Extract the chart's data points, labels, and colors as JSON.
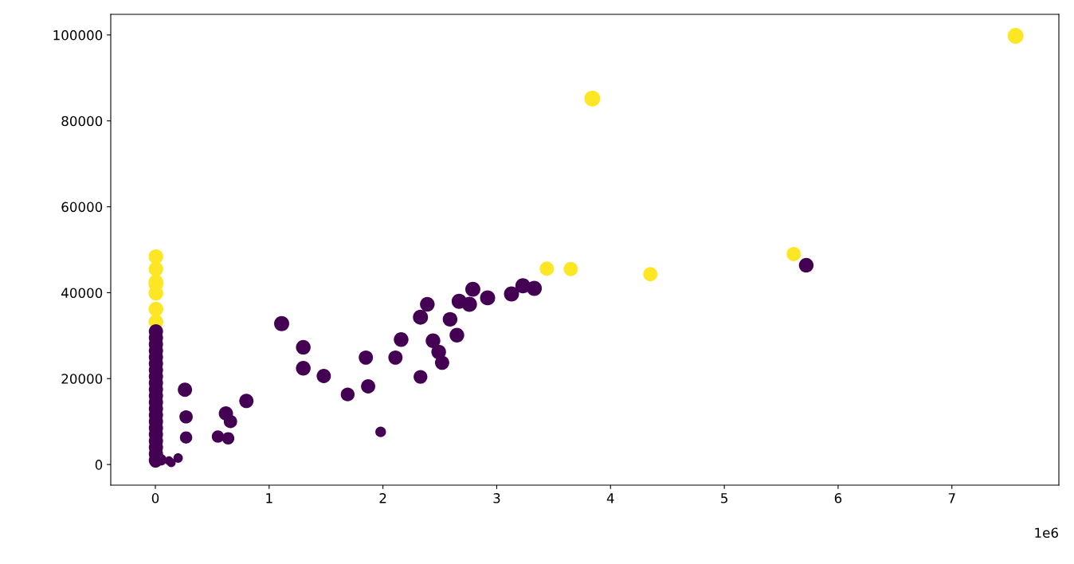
{
  "chart_data": {
    "type": "bubble",
    "x": [
      0.005,
      0.005,
      0.005,
      0.005,
      0.005,
      0.005,
      0.005,
      0.005,
      0.005,
      0.005,
      0.005,
      0.005,
      0.005,
      0.005,
      0.005,
      0.005,
      0.005,
      0.005,
      0.005,
      0.005,
      0.005,
      0.005,
      0.005,
      0.005,
      0.005,
      0.005,
      0.005,
      0.005,
      0,
      0.05,
      0.12,
      0.14,
      0.2,
      0.26,
      0.27,
      0.27,
      0.55,
      0.64,
      0.62,
      0.66,
      0.8,
      1.11,
      1.3,
      1.3,
      1.48,
      1.69,
      1.85,
      1.87,
      1.98,
      2.11,
      2.16,
      2.33,
      2.33,
      2.39,
      2.44,
      2.49,
      2.52,
      2.59,
      2.65,
      2.67,
      2.76,
      2.79,
      2.92,
      3.13,
      3.23,
      3.33,
      5.72,
      3.44,
      3.65,
      3.84,
      4.35,
      5.61,
      7.56
    ],
    "values": [
      48400,
      45500,
      42500,
      42000,
      39900,
      36200,
      33200,
      31000,
      29500,
      28000,
      26500,
      25000,
      23500,
      22000,
      20500,
      19000,
      17500,
      16000,
      14500,
      13000,
      11500,
      10000,
      8500,
      7000,
      5500,
      4000,
      2500,
      1000,
      600,
      1100,
      900,
      400,
      1500,
      17400,
      11100,
      6300,
      6500,
      6100,
      11900,
      10000,
      14800,
      32800,
      27300,
      22400,
      20600,
      16300,
      24900,
      18200,
      7600,
      24900,
      29100,
      20400,
      34300,
      37300,
      28800,
      26200,
      23700,
      33800,
      30100,
      38000,
      37300,
      40800,
      38800,
      39700,
      41600,
      41000,
      46400,
      45600,
      45500,
      85200,
      44300,
      49000,
      99800
    ],
    "sizes": [
      0.85,
      0.85,
      0.85,
      0.85,
      0.85,
      0.85,
      0.85,
      0.8,
      0.8,
      0.8,
      0.8,
      0.8,
      0.8,
      0.8,
      0.8,
      0.8,
      0.8,
      0.8,
      0.8,
      0.8,
      0.8,
      0.8,
      0.8,
      0.8,
      0.8,
      0.8,
      0.8,
      0.8,
      0.5,
      0.5,
      0.3,
      0.3,
      0.35,
      0.8,
      0.7,
      0.6,
      0.6,
      0.6,
      0.8,
      0.7,
      0.8,
      0.9,
      0.85,
      0.85,
      0.8,
      0.75,
      0.8,
      0.8,
      0.45,
      0.8,
      0.85,
      0.75,
      0.9,
      0.85,
      0.85,
      0.85,
      0.8,
      0.85,
      0.85,
      0.9,
      0.9,
      0.9,
      0.9,
      0.9,
      0.9,
      0.9,
      0.85,
      0.8,
      0.8,
      1,
      0.8,
      0.8,
      1
    ],
    "colors": [
      "#fde725",
      "#fde725",
      "#fde725",
      "#fde725",
      "#fde725",
      "#fde725",
      "#fde725",
      "#440154",
      "#440154",
      "#440154",
      "#440154",
      "#440154",
      "#440154",
      "#440154",
      "#440154",
      "#440154",
      "#440154",
      "#440154",
      "#440154",
      "#440154",
      "#440154",
      "#440154",
      "#440154",
      "#440154",
      "#440154",
      "#440154",
      "#440154",
      "#440154",
      "#440154",
      "#440154",
      "#440154",
      "#440154",
      "#440154",
      "#440154",
      "#440154",
      "#440154",
      "#440154",
      "#440154",
      "#440154",
      "#440154",
      "#440154",
      "#440154",
      "#440154",
      "#440154",
      "#440154",
      "#440154",
      "#440154",
      "#440154",
      "#440154",
      "#440154",
      "#440154",
      "#440154",
      "#440154",
      "#440154",
      "#440154",
      "#440154",
      "#440154",
      "#440154",
      "#440154",
      "#440154",
      "#440154",
      "#440154",
      "#440154",
      "#440154",
      "#440154",
      "#440154",
      "#440154",
      "#fde725",
      "#fde725",
      "#fde725",
      "#fde725",
      "#fde725",
      "#fde725"
    ],
    "xlim": [
      -0.392,
      7.94
    ],
    "xticks": [
      0,
      1,
      2,
      3,
      4,
      5,
      6,
      7
    ],
    "ylim": [
      -4800,
      104800
    ],
    "yticks": [
      0,
      20000,
      40000,
      60000,
      80000,
      100000
    ],
    "annotations": [
      "1e6"
    ],
    "grid": false,
    "legend": false
  }
}
